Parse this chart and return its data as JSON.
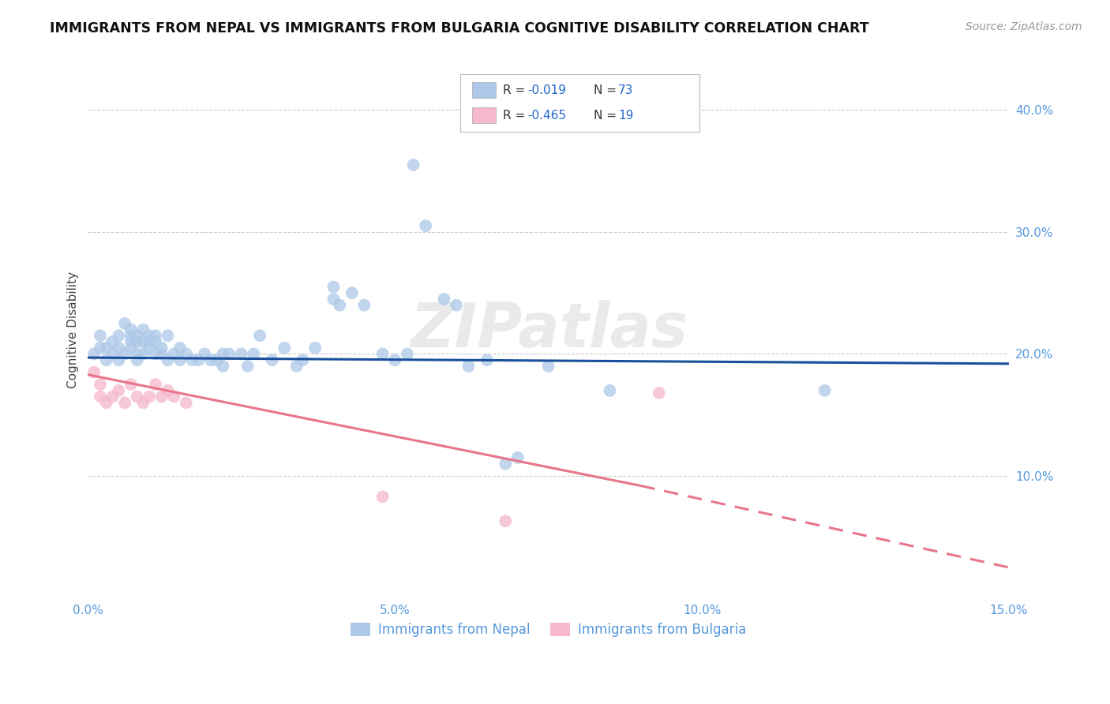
{
  "title": "IMMIGRANTS FROM NEPAL VS IMMIGRANTS FROM BULGARIA COGNITIVE DISABILITY CORRELATION CHART",
  "source": "Source: ZipAtlas.com",
  "ylabel": "Cognitive Disability",
  "xlim": [
    0.0,
    0.15
  ],
  "ylim": [
    0.0,
    0.44
  ],
  "xticks": [
    0.0,
    0.05,
    0.1,
    0.15
  ],
  "yticks": [
    0.1,
    0.2,
    0.3,
    0.4
  ],
  "ytick_labels": [
    "10.0%",
    "20.0%",
    "30.0%",
    "40.0%"
  ],
  "xtick_labels": [
    "0.0%",
    "5.0%",
    "10.0%",
    "15.0%"
  ],
  "nepal_R": "-0.019",
  "nepal_N": "73",
  "bulgaria_R": "-0.465",
  "bulgaria_N": "19",
  "nepal_color": "#adc8e8",
  "bulgaria_color": "#f5b8cc",
  "nepal_line_color": "#1a4f9c",
  "bulgaria_line_color": "#e8758a",
  "nepal_line": [
    0.0,
    0.197,
    0.15,
    0.192
  ],
  "bulgaria_line_solid": [
    0.0,
    0.183,
    0.09,
    0.092
  ],
  "bulgaria_line_dash": [
    0.09,
    0.092,
    0.15,
    0.025
  ],
  "nepal_scatter": [
    [
      0.001,
      0.2
    ],
    [
      0.002,
      0.205
    ],
    [
      0.002,
      0.215
    ],
    [
      0.003,
      0.195
    ],
    [
      0.003,
      0.205
    ],
    [
      0.004,
      0.21
    ],
    [
      0.004,
      0.2
    ],
    [
      0.005,
      0.205
    ],
    [
      0.005,
      0.215
    ],
    [
      0.005,
      0.195
    ],
    [
      0.006,
      0.2
    ],
    [
      0.006,
      0.225
    ],
    [
      0.007,
      0.215
    ],
    [
      0.007,
      0.205
    ],
    [
      0.007,
      0.22
    ],
    [
      0.007,
      0.21
    ],
    [
      0.008,
      0.21
    ],
    [
      0.008,
      0.2
    ],
    [
      0.008,
      0.215
    ],
    [
      0.008,
      0.195
    ],
    [
      0.009,
      0.22
    ],
    [
      0.009,
      0.21
    ],
    [
      0.009,
      0.2
    ],
    [
      0.01,
      0.215
    ],
    [
      0.01,
      0.205
    ],
    [
      0.01,
      0.21
    ],
    [
      0.011,
      0.215
    ],
    [
      0.011,
      0.2
    ],
    [
      0.011,
      0.21
    ],
    [
      0.012,
      0.205
    ],
    [
      0.012,
      0.2
    ],
    [
      0.013,
      0.215
    ],
    [
      0.013,
      0.195
    ],
    [
      0.014,
      0.2
    ],
    [
      0.015,
      0.205
    ],
    [
      0.015,
      0.195
    ],
    [
      0.016,
      0.2
    ],
    [
      0.017,
      0.195
    ],
    [
      0.018,
      0.195
    ],
    [
      0.019,
      0.2
    ],
    [
      0.02,
      0.195
    ],
    [
      0.021,
      0.195
    ],
    [
      0.022,
      0.2
    ],
    [
      0.022,
      0.19
    ],
    [
      0.023,
      0.2
    ],
    [
      0.025,
      0.2
    ],
    [
      0.026,
      0.19
    ],
    [
      0.027,
      0.2
    ],
    [
      0.028,
      0.215
    ],
    [
      0.03,
      0.195
    ],
    [
      0.032,
      0.205
    ],
    [
      0.034,
      0.19
    ],
    [
      0.035,
      0.195
    ],
    [
      0.037,
      0.205
    ],
    [
      0.04,
      0.245
    ],
    [
      0.04,
      0.255
    ],
    [
      0.041,
      0.24
    ],
    [
      0.043,
      0.25
    ],
    [
      0.045,
      0.24
    ],
    [
      0.048,
      0.2
    ],
    [
      0.05,
      0.195
    ],
    [
      0.052,
      0.2
    ],
    [
      0.053,
      0.355
    ],
    [
      0.055,
      0.305
    ],
    [
      0.058,
      0.245
    ],
    [
      0.06,
      0.24
    ],
    [
      0.062,
      0.19
    ],
    [
      0.065,
      0.195
    ],
    [
      0.068,
      0.11
    ],
    [
      0.07,
      0.115
    ],
    [
      0.075,
      0.19
    ],
    [
      0.085,
      0.17
    ],
    [
      0.12,
      0.17
    ]
  ],
  "bulgaria_scatter": [
    [
      0.001,
      0.185
    ],
    [
      0.002,
      0.175
    ],
    [
      0.002,
      0.165
    ],
    [
      0.003,
      0.16
    ],
    [
      0.004,
      0.165
    ],
    [
      0.005,
      0.17
    ],
    [
      0.006,
      0.16
    ],
    [
      0.007,
      0.175
    ],
    [
      0.008,
      0.165
    ],
    [
      0.009,
      0.16
    ],
    [
      0.01,
      0.165
    ],
    [
      0.011,
      0.175
    ],
    [
      0.012,
      0.165
    ],
    [
      0.013,
      0.17
    ],
    [
      0.014,
      0.165
    ],
    [
      0.016,
      0.16
    ],
    [
      0.048,
      0.083
    ],
    [
      0.068,
      0.063
    ],
    [
      0.093,
      0.168
    ]
  ]
}
